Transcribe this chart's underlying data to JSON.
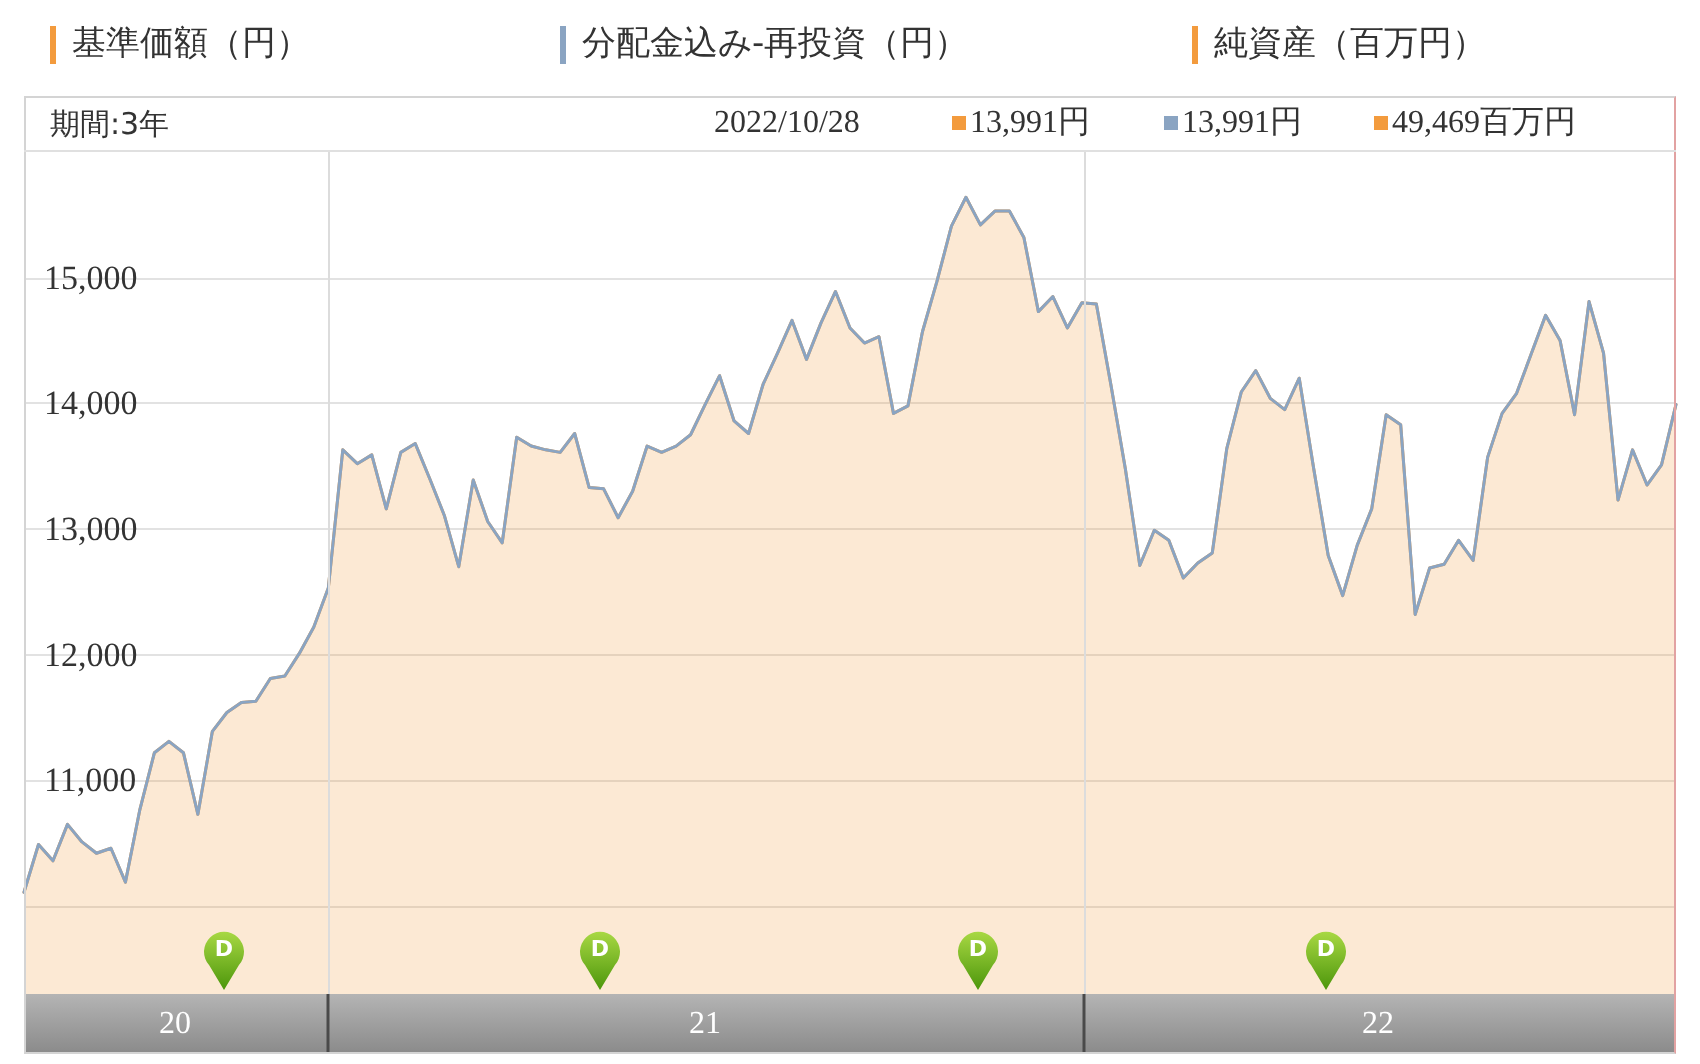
{
  "chart_data": {
    "type": "area",
    "x": [
      "2020-08-07",
      "2020-08-14",
      "2020-08-21",
      "2020-08-28",
      "2020-09-04",
      "2020-09-11",
      "2020-09-18",
      "2020-09-25",
      "2020-10-02",
      "2020-10-09",
      "2020-10-16",
      "2020-10-23",
      "2020-10-30",
      "2020-11-06",
      "2020-11-13",
      "2020-11-20",
      "2020-11-27",
      "2020-12-04",
      "2020-12-11",
      "2020-12-18",
      "2020-12-25",
      "2021-01-01",
      "2021-01-08",
      "2021-01-15",
      "2021-01-22",
      "2021-01-29",
      "2021-02-05",
      "2021-02-12",
      "2021-02-19",
      "2021-02-26",
      "2021-03-05",
      "2021-03-12",
      "2021-03-19",
      "2021-03-26",
      "2021-04-02",
      "2021-04-09",
      "2021-04-16",
      "2021-04-23",
      "2021-04-30",
      "2021-05-07",
      "2021-05-14",
      "2021-05-21",
      "2021-05-28",
      "2021-06-04",
      "2021-06-11",
      "2021-06-18",
      "2021-06-25",
      "2021-07-02",
      "2021-07-09",
      "2021-07-16",
      "2021-07-23",
      "2021-07-30",
      "2021-08-06",
      "2021-08-13",
      "2021-08-20",
      "2021-08-27",
      "2021-09-03",
      "2021-09-10",
      "2021-09-17",
      "2021-09-24",
      "2021-10-01",
      "2021-10-08",
      "2021-10-15",
      "2021-10-22",
      "2021-10-29",
      "2021-11-05",
      "2021-11-12",
      "2021-11-19",
      "2021-11-26",
      "2021-12-03",
      "2021-12-10",
      "2021-12-17",
      "2021-12-24",
      "2021-12-31",
      "2022-01-07",
      "2022-01-14",
      "2022-01-21",
      "2022-01-28",
      "2022-02-04",
      "2022-02-11",
      "2022-02-18",
      "2022-02-25",
      "2022-03-04",
      "2022-03-11",
      "2022-03-18",
      "2022-03-25",
      "2022-04-01",
      "2022-04-08",
      "2022-04-15",
      "2022-04-22",
      "2022-04-29",
      "2022-05-06",
      "2022-05-13",
      "2022-05-20",
      "2022-05-27",
      "2022-06-03",
      "2022-06-10",
      "2022-06-17",
      "2022-06-24",
      "2022-07-01",
      "2022-07-08",
      "2022-07-15",
      "2022-07-22",
      "2022-07-29",
      "2022-08-05",
      "2022-08-12",
      "2022-08-19",
      "2022-08-26",
      "2022-09-02",
      "2022-09-09",
      "2022-09-16",
      "2022-09-23",
      "2022-09-30",
      "2022-10-07",
      "2022-10-14"
    ],
    "series": [
      {
        "name": "基準価額（円）",
        "color": "#f39b3d",
        "values": [
          10110,
          10490,
          10360,
          10650,
          10510,
          10420,
          10460,
          10190,
          10770,
          11220,
          11310,
          11220,
          10730,
          11390,
          11540,
          11620,
          11630,
          11810,
          11830,
          12010,
          12220,
          12530,
          13630,
          13520,
          13590,
          13160,
          13610,
          13680,
          13400,
          13110,
          12700,
          13390,
          13060,
          12890,
          13730,
          13660,
          13630,
          13610,
          13760,
          13330,
          13320,
          13090,
          13300,
          13660,
          13610,
          13660,
          13750,
          13990,
          14220,
          13860,
          13760,
          14150,
          14400,
          14660,
          14350,
          14640,
          14890,
          14600,
          14480,
          14530,
          13920,
          13980,
          14570,
          14970,
          15410,
          15640,
          15420,
          15530,
          15530,
          15320,
          14730,
          14850,
          14600,
          14800,
          14790,
          14150,
          13480,
          12710,
          12990,
          12910,
          12610,
          12730,
          12810,
          13640,
          14090,
          14260,
          14040,
          13950,
          14200,
          13480,
          12790,
          12470,
          12870,
          13160,
          13910,
          13830,
          12320,
          12690,
          12720,
          12910,
          12750,
          13570,
          13920,
          14080,
          14390,
          14700,
          14500,
          13910,
          14810,
          14400,
          13230,
          13630,
          13350,
          13510,
          13991
        ]
      },
      {
        "name": "分配金込み-再投資（円）",
        "type": "line",
        "color": "#8aa4c2",
        "values": [
          10110,
          10490,
          10360,
          10650,
          10510,
          10420,
          10460,
          10190,
          10770,
          11220,
          11310,
          11220,
          10730,
          11390,
          11540,
          11620,
          11630,
          11810,
          11830,
          12010,
          12220,
          12530,
          13630,
          13520,
          13590,
          13160,
          13610,
          13680,
          13400,
          13110,
          12700,
          13390,
          13060,
          12890,
          13730,
          13660,
          13630,
          13610,
          13760,
          13330,
          13320,
          13090,
          13300,
          13660,
          13610,
          13660,
          13750,
          13990,
          14220,
          13860,
          13760,
          14150,
          14400,
          14660,
          14350,
          14640,
          14890,
          14600,
          14480,
          14530,
          13920,
          13980,
          14570,
          14970,
          15410,
          15640,
          15420,
          15530,
          15530,
          15320,
          14730,
          14850,
          14600,
          14800,
          14790,
          14150,
          13480,
          12710,
          12990,
          12910,
          12610,
          12730,
          12810,
          13640,
          14090,
          14260,
          14040,
          13950,
          14200,
          13480,
          12790,
          12470,
          12870,
          13160,
          13910,
          13830,
          12320,
          12690,
          12720,
          12910,
          12750,
          13570,
          13920,
          14080,
          14390,
          14700,
          14500,
          13910,
          14810,
          14400,
          13230,
          13630,
          13350,
          13510,
          13991
        ]
      }
    ],
    "xlim": [
      "2020-08-07",
      "2022-10-14"
    ],
    "xticks": [
      {
        "value": "2020-10-19",
        "label": "20"
      },
      {
        "value": "2021-01-01",
        "label": null
      },
      {
        "value": "2021-07-02",
        "label": "21"
      },
      {
        "value": "2022-01-01",
        "label": null
      },
      {
        "value": "2022-05-23",
        "label": "22"
      }
    ],
    "ylim": [
      9300,
      16000
    ],
    "yticks": [
      {
        "value": 10000,
        "label": null
      },
      {
        "value": 11000,
        "label": "11,000"
      },
      {
        "value": 12000,
        "label": "12,000"
      },
      {
        "value": 13000,
        "label": "13,000"
      },
      {
        "value": 14000,
        "label": "14,000"
      },
      {
        "value": 15000,
        "label": "15,000"
      }
    ],
    "grid": "y",
    "legend": "top",
    "ref_lines": [
      {
        "axis": "x",
        "value": "2021-01-01",
        "color": "#dcdcdc"
      },
      {
        "axis": "x",
        "value": "2022-01-01",
        "color": "#dcdcdc"
      }
    ],
    "annotations": [
      "純資産（百万円）",
      "期間:3年",
      "2022/10/28",
      "13,991円",
      "13,991円",
      "49,469百万円",
      "D",
      "D",
      "D",
      "D"
    ]
  }
}
